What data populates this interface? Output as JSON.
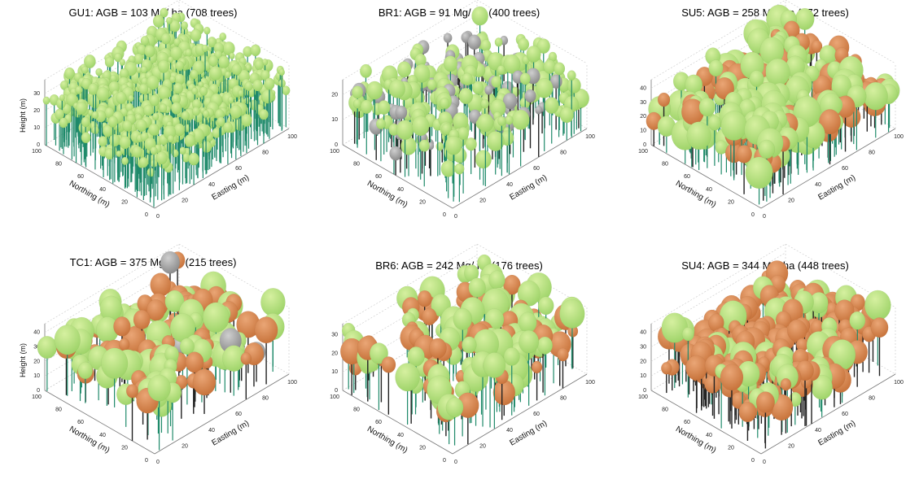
{
  "figure": {
    "ylabel": "Height (m)",
    "xlabel": "Easting (m)",
    "zlabel": "Northing (m)"
  },
  "panels": [
    {
      "id": "GU1",
      "title": "GU1: AGB = 103 Mg/ ha (708 trees)",
      "zmax": 30,
      "zticks": [
        "0",
        "10",
        "20",
        "30"
      ],
      "green": 1.0,
      "brown": 0.0,
      "grey": 0.0,
      "density": "high",
      "crown": "small"
    },
    {
      "id": "BR1",
      "title": "BR1: AGB = 91 Mg/ ha (400 trees)",
      "zmax": 20,
      "zticks": [
        "0",
        "10",
        "20"
      ],
      "green": 0.7,
      "brown": 0.0,
      "grey": 0.3,
      "density": "medium",
      "crown": "medium"
    },
    {
      "id": "SU5",
      "title": "SU5: AGB = 258 Mg/ ha (372 trees)",
      "zmax": 40,
      "zticks": [
        "0",
        "10",
        "20",
        "30",
        "40"
      ],
      "green": 0.65,
      "brown": 0.35,
      "grey": 0.0,
      "density": "medium",
      "crown": "large"
    },
    {
      "id": "TC1",
      "title": "TC1: AGB = 375 Mg/ ha (215 trees)",
      "zmax": 40,
      "zticks": [
        "0",
        "10",
        "20",
        "30",
        "40"
      ],
      "green": 0.45,
      "brown": 0.5,
      "grey": 0.05,
      "density": "low",
      "crown": "large"
    },
    {
      "id": "BR6",
      "title": "BR6: AGB = 242 Mg/ ha (176 trees)",
      "zmax": 30,
      "zticks": [
        "0",
        "10",
        "20",
        "30"
      ],
      "green": 0.55,
      "brown": 0.45,
      "grey": 0.0,
      "density": "low",
      "crown": "large"
    },
    {
      "id": "SU4",
      "title": "SU4: AGB = 344 Mg/ ha (448 trees)",
      "zmax": 40,
      "zticks": [
        "0",
        "10",
        "20",
        "30",
        "40"
      ],
      "green": 0.25,
      "brown": 0.75,
      "grey": 0.0,
      "density": "medium",
      "crown": "large"
    }
  ],
  "horizontal_ticks": [
    "0",
    "20",
    "40",
    "60",
    "80",
    "100"
  ],
  "colors": {
    "green_crown": "#9fd46a",
    "green_crown_light": "#d6f0a0",
    "brown_crown": "#c8743c",
    "brown_crown_light": "#eaa676",
    "grey_crown": "#8c8c8c",
    "grey_crown_light": "#cfcfcf",
    "stem_green": "#1f8a6a",
    "stem_dark": "#222222"
  }
}
